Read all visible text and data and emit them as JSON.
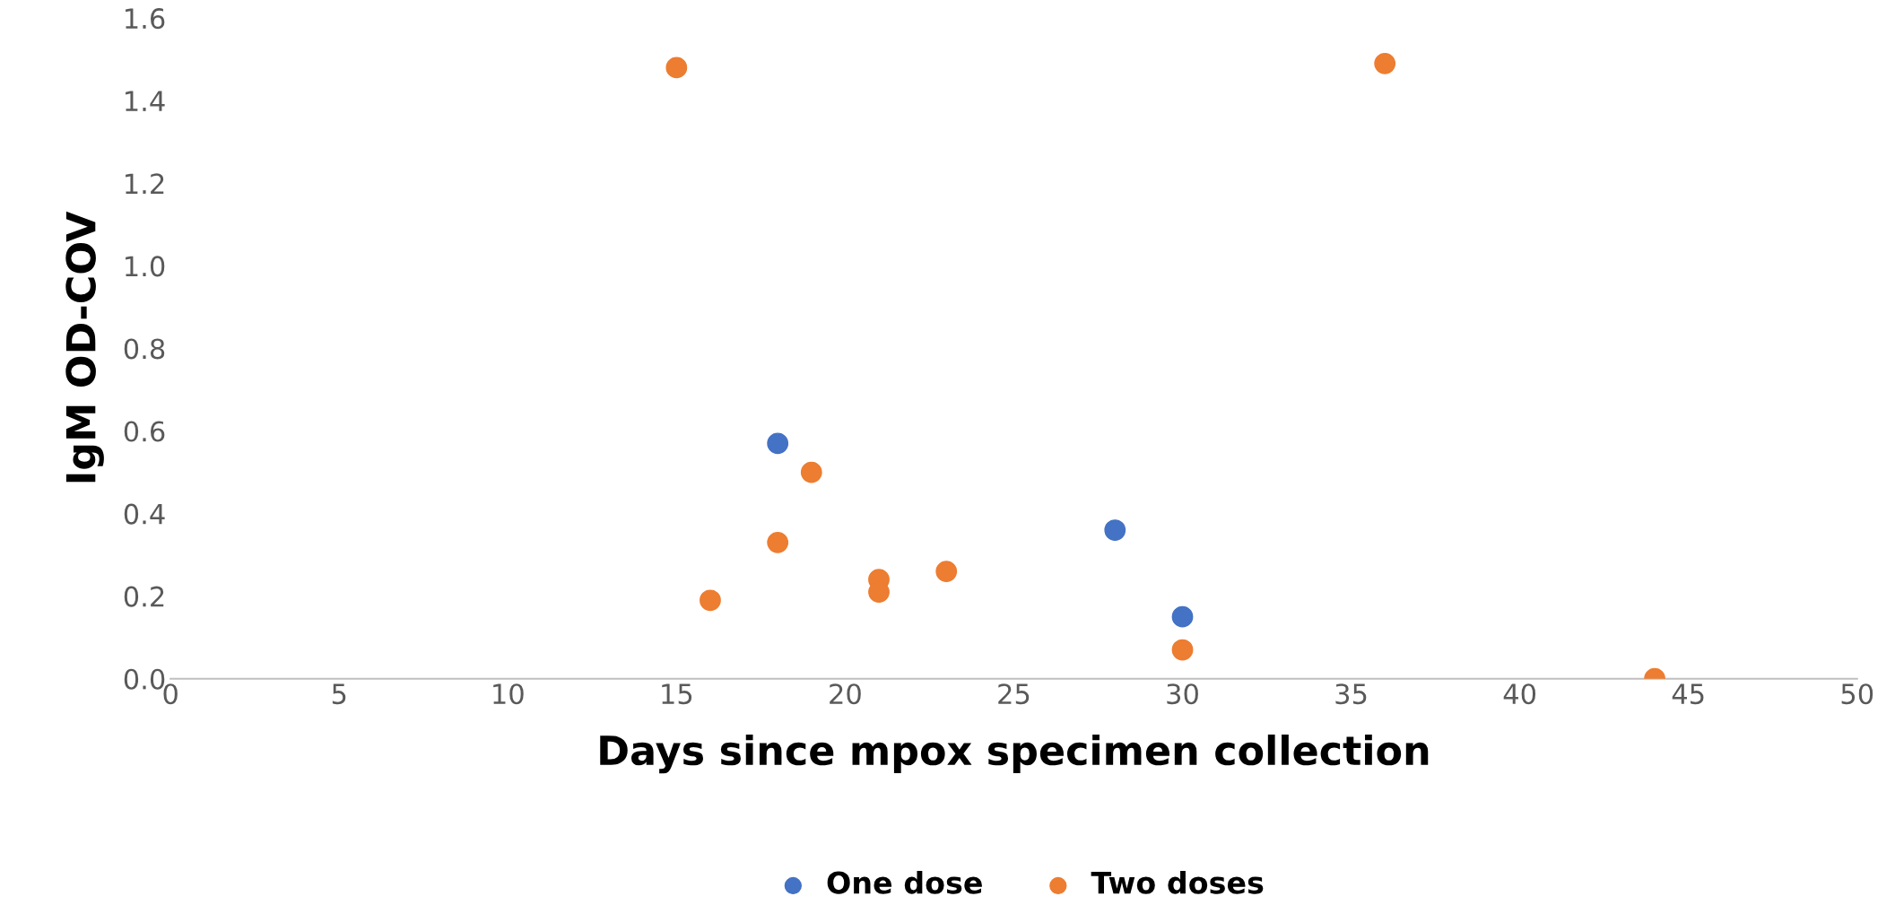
{
  "chart_data": {
    "type": "scatter",
    "xlabel": "Days since mpox specimen collection",
    "ylabel": "IgM OD-COV",
    "series": [
      {
        "name": "One dose",
        "color": "#4472c4",
        "x": [
          18,
          28,
          30
        ],
        "values": [
          0.57,
          0.36,
          0.15
        ]
      },
      {
        "name": "Two doses",
        "color": "#ed7d31",
        "x": [
          15,
          36,
          19,
          18,
          16,
          21,
          21,
          23,
          30,
          44
        ],
        "values": [
          1.48,
          1.49,
          0.5,
          0.33,
          0.19,
          0.24,
          0.21,
          0.26,
          0.07,
          0.0
        ]
      }
    ],
    "xlim": [
      0,
      50
    ],
    "xticks": [
      0,
      5,
      10,
      15,
      20,
      25,
      30,
      35,
      40,
      45,
      50
    ],
    "ylim": [
      0,
      1.6
    ],
    "yticks": [
      {
        "value": 0,
        "label": "0.0"
      },
      0.2,
      0.4,
      0.6,
      0.8,
      {
        "value": 1,
        "label": "1.0"
      },
      1.2,
      1.4,
      1.6
    ],
    "grid": false,
    "legend": "bottom",
    "marker": "circle"
  }
}
